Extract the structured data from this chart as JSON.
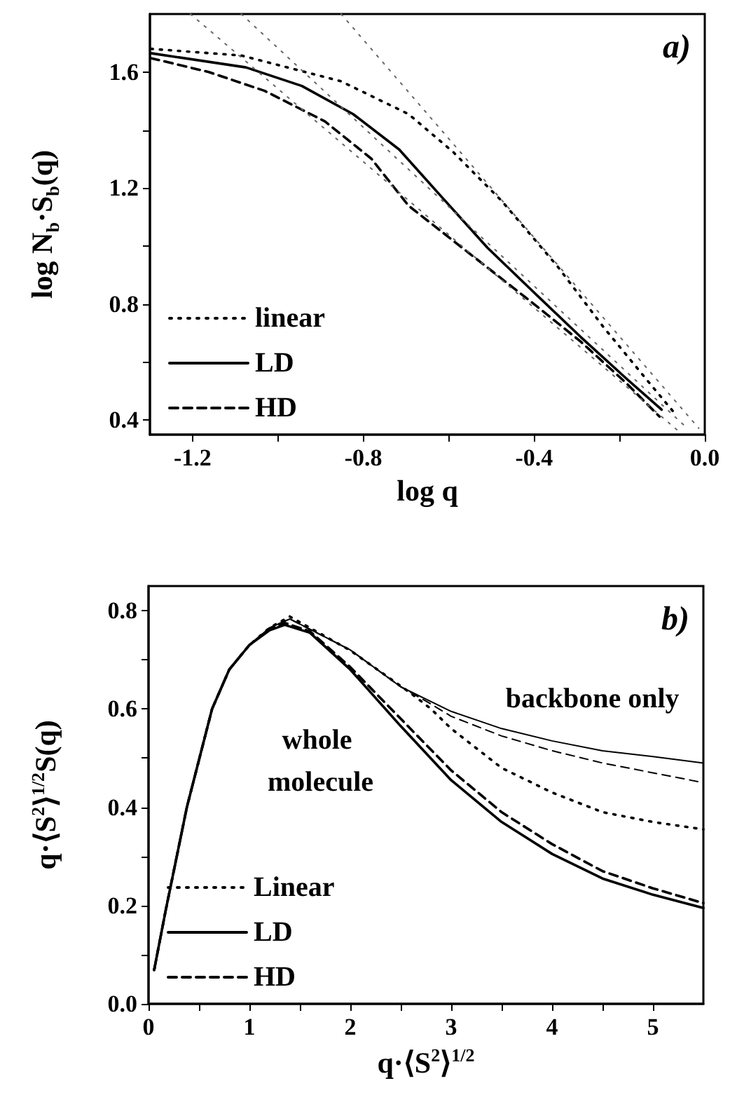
{
  "chart_data": [
    {
      "type": "line",
      "xlabel": "log q",
      "ylabel": "log N$_{b}$·S$_{b}$(q)",
      "annotations": [
        "a)"
      ],
      "xlim": [
        -1.3,
        0
      ],
      "ylim": [
        0.35,
        1.8
      ],
      "xticks": [
        -1.2,
        {
          "value": -1.0,
          "label": null
        },
        -0.8,
        {
          "value": -0.6,
          "label": null
        },
        -0.4,
        {
          "value": -0.2,
          "label": null
        },
        {
          "value": 0,
          "label": "0.0"
        }
      ],
      "yticks": [
        0.4,
        {
          "value": 0.6,
          "label": null
        },
        0.8,
        {
          "value": 1.0,
          "label": null
        },
        1.2,
        {
          "value": 1.4,
          "label": null
        },
        1.6
      ],
      "grid": false,
      "legend": "bottom left",
      "marker": "none",
      "series": [
        {
          "name": "linear",
          "color": "#000000",
          "line_style": "dotted",
          "x": [
            -1.298,
            -1.086,
            -0.852,
            -0.694,
            -0.59,
            -0.476,
            -0.345,
            -0.237,
            -0.128,
            -0.073
          ],
          "values": [
            1.68,
            1.657,
            1.568,
            1.455,
            1.325,
            1.156,
            0.93,
            0.72,
            0.525,
            0.428
          ]
        },
        {
          "name": "LD",
          "color": "#000000",
          "line_style": "solid",
          "x": [
            -1.298,
            -1.075,
            -0.944,
            -0.824,
            -0.716,
            -0.618,
            -0.509,
            -0.4,
            -0.291,
            -0.182,
            -0.101
          ],
          "values": [
            1.665,
            1.616,
            1.552,
            1.455,
            1.333,
            1.172,
            0.994,
            0.84,
            0.687,
            0.541,
            0.436
          ]
        },
        {
          "name": "HD",
          "color": "#000000",
          "line_style": "dashed",
          "x": [
            -1.298,
            -1.162,
            -1.031,
            -0.89,
            -0.781,
            -0.694,
            -0.596,
            -0.498,
            -0.4,
            -0.291,
            -0.182,
            -0.106
          ],
          "values": [
            1.648,
            1.6,
            1.535,
            1.43,
            1.301,
            1.139,
            1.026,
            0.913,
            0.8,
            0.671,
            0.525,
            0.412
          ]
        },
        {
          "color": "#666666",
          "line_style": "dotted",
          "x": [
            -1.205,
            -0.063
          ],
          "values": [
            1.8,
            0.364
          ]
        },
        {
          "color": "#666666",
          "line_style": "dotted",
          "x": [
            -1.086,
            -0.041
          ],
          "values": [
            1.8,
            0.372
          ]
        },
        {
          "color": "#666666",
          "line_style": "dotted",
          "x": [
            -0.852,
            -0.014
          ],
          "values": [
            1.8,
            0.372
          ]
        }
      ]
    },
    {
      "type": "line",
      "xlabel": "q·⟨S$^{2}$⟩$^{1/2}$",
      "ylabel": "q·⟨S$^{2}$⟩$^{1/2}$S(q)",
      "annotations": [
        "b)",
        "whole molecule",
        "backbone only"
      ],
      "xlim": [
        0,
        5.5
      ],
      "ylim": [
        0,
        0.85
      ],
      "xticks": [
        0,
        {
          "value": 0.5,
          "label": null
        },
        1,
        {
          "value": 1.5,
          "label": null
        },
        2,
        {
          "value": 2.5,
          "label": null
        },
        3,
        {
          "value": 3.5,
          "label": null
        },
        4,
        {
          "value": 4.5,
          "label": null
        },
        5
      ],
      "yticks": [
        {
          "value": 0,
          "label": "0.0"
        },
        {
          "value": 0.1,
          "label": null
        },
        0.2,
        {
          "value": 0.3,
          "label": null
        },
        0.4,
        {
          "value": 0.5,
          "label": null
        },
        0.6,
        {
          "value": 0.7,
          "label": null
        },
        0.8
      ],
      "grid": false,
      "legend": "bottom left",
      "marker": "none",
      "series": [
        {
          "name": "Linear",
          "color": "#000000",
          "line_style": "dotted",
          "x": [
            0.056,
            0.17,
            0.38,
            0.63,
            0.8,
            1.0,
            1.2,
            1.4,
            2.0,
            2.6,
            2.8,
            3.0,
            3.5,
            4.0,
            4.5,
            5.0,
            5.5
          ],
          "values": [
            0.069,
            0.19,
            0.4,
            0.6,
            0.68,
            0.73,
            0.765,
            0.788,
            0.719,
            0.632,
            0.6,
            0.56,
            0.48,
            0.43,
            0.39,
            0.37,
            0.355
          ]
        },
        {
          "name": "LD",
          "color": "#000000",
          "line_style": "solid",
          "x": [
            0.056,
            0.17,
            0.38,
            0.63,
            0.8,
            1.0,
            1.2,
            1.35,
            1.6,
            2.0,
            2.5,
            3.0,
            3.5,
            4.0,
            4.5,
            5.0,
            5.5
          ],
          "values": [
            0.069,
            0.19,
            0.4,
            0.6,
            0.68,
            0.73,
            0.76,
            0.771,
            0.755,
            0.68,
            0.565,
            0.455,
            0.37,
            0.305,
            0.255,
            0.222,
            0.195
          ]
        },
        {
          "name": "HD",
          "color": "#000000",
          "line_style": "dashed",
          "x": [
            0.056,
            0.17,
            0.38,
            0.63,
            0.8,
            1.0,
            1.2,
            1.35,
            1.6,
            2.0,
            2.5,
            3.0,
            3.5,
            4.0,
            4.5,
            5.0,
            5.5
          ],
          "values": [
            0.069,
            0.19,
            0.4,
            0.6,
            0.68,
            0.73,
            0.762,
            0.775,
            0.758,
            0.685,
            0.58,
            0.475,
            0.39,
            0.325,
            0.27,
            0.235,
            0.205
          ]
        },
        {
          "color": "#000000",
          "line_style": "solid",
          "x": [
            0.056,
            0.17,
            0.38,
            0.63,
            0.8,
            1.0,
            1.2,
            1.4,
            2.0,
            2.5,
            3.0,
            3.5,
            4.0,
            4.5,
            5.0,
            5.5
          ],
          "values": [
            0.069,
            0.19,
            0.4,
            0.6,
            0.68,
            0.73,
            0.765,
            0.783,
            0.72,
            0.645,
            0.595,
            0.56,
            0.535,
            0.515,
            0.503,
            0.49
          ]
        },
        {
          "color": "#000000",
          "line_style": "dashed",
          "x": [
            0.056,
            0.17,
            0.38,
            0.63,
            0.8,
            1.0,
            1.2,
            1.4,
            2.0,
            2.5,
            2.8,
            3.0,
            3.5,
            4.0,
            4.5,
            5.0,
            5.5
          ],
          "values": [
            0.069,
            0.19,
            0.4,
            0.6,
            0.68,
            0.73,
            0.765,
            0.783,
            0.72,
            0.645,
            0.61,
            0.585,
            0.545,
            0.515,
            0.49,
            0.47,
            0.45
          ]
        }
      ]
    }
  ]
}
